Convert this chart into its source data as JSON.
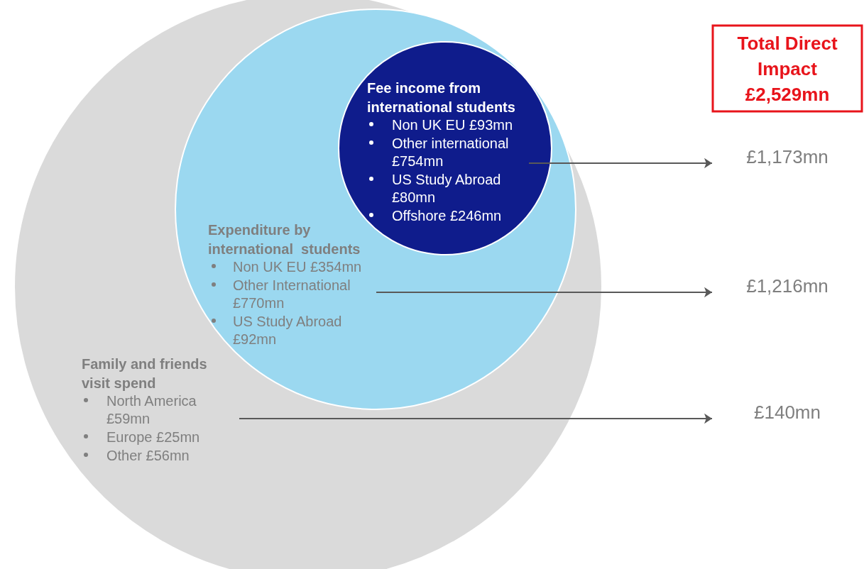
{
  "chart_data": {
    "type": "other",
    "title": "Total Direct Impact £2,529mn",
    "categories": [
      null,
      null,
      null
    ],
    "values": [
      1173,
      1216,
      140
    ],
    "value_labels": [
      "£1,173mn",
      "£1,216mn",
      "£140mn"
    ],
    "colors": [
      "#0f1c8c",
      "#9bd8f0",
      "#dadada"
    ],
    "annotations": [
      "Fee income from international students",
      "Non UK EU £93mn",
      "Other international £754mn",
      "US Study Abroad £80mn",
      "Offshore £246mn",
      "Expenditure by international  students",
      "Non UK EU £354mn",
      "Other International £770mn",
      "US Study Abroad £92mn",
      "Family and friends visit spend",
      "North America £59mn",
      "Europe £25mn",
      "Other £56mn"
    ]
  }
}
